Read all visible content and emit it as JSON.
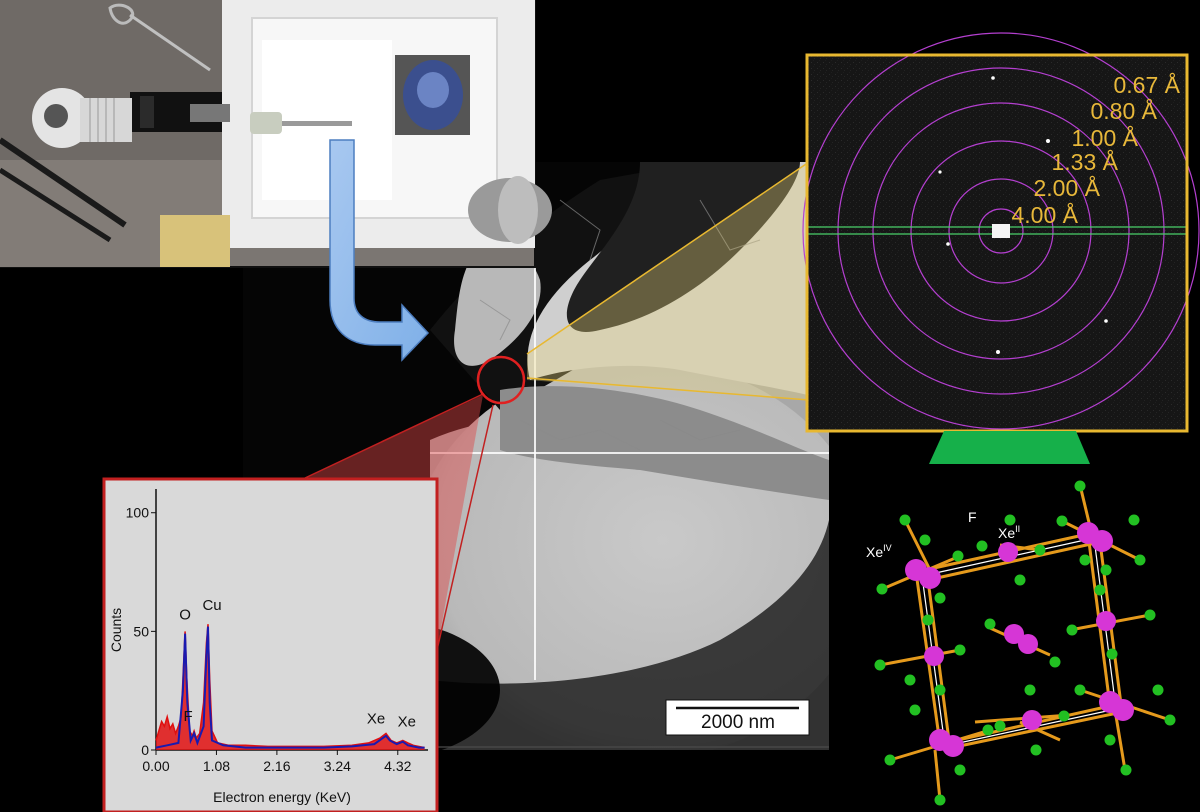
{
  "photo": {
    "description_icon": "cryo-transfer-holder-photo"
  },
  "tem": {
    "scale_bar_label": "2000 nm"
  },
  "diffraction": {
    "ring_labels": [
      "0.67 Å",
      "0.80 Å",
      "1.00 Å",
      "1.33 Å",
      "2.00 Å",
      "4.00 Å"
    ]
  },
  "crystal": {
    "labels": {
      "xe_iv": "Xe",
      "xe_iv_sup": "IV",
      "f": "F",
      "xe_ii": "Xe",
      "xe_ii_sup": "II"
    },
    "colors": {
      "xe": "#d636d6",
      "f": "#22c022",
      "bond": "#e59a1c"
    }
  },
  "chart_data": {
    "type": "line",
    "title": "",
    "xlabel": "Electron energy (KeV)",
    "ylabel": "Counts",
    "x_ticks": [
      "0.00",
      "1.08",
      "2.16",
      "3.24",
      "4.32"
    ],
    "y_ticks": [
      "0",
      "50",
      "100"
    ],
    "xlim": [
      0,
      4.86
    ],
    "ylim": [
      0,
      110
    ],
    "peaks": [
      {
        "label": "O",
        "x": 0.52,
        "y": 50
      },
      {
        "label": "Cu",
        "x": 0.93,
        "y": 53
      },
      {
        "label": "F",
        "x": 0.68,
        "y": 8
      },
      {
        "label": "Xe",
        "x": 4.11,
        "y": 7
      },
      {
        "label": "Xe",
        "x": 4.41,
        "y": 4
      }
    ],
    "series": [
      {
        "color": "#e01010",
        "x": [
          0.0,
          0.05,
          0.1,
          0.15,
          0.2,
          0.25,
          0.3,
          0.35,
          0.4,
          0.45,
          0.5,
          0.52,
          0.55,
          0.6,
          0.65,
          0.68,
          0.72,
          0.78,
          0.85,
          0.9,
          0.93,
          0.96,
          1.0,
          1.1,
          1.3,
          1.6,
          2.0,
          2.5,
          3.0,
          3.5,
          3.8,
          4.0,
          4.11,
          4.2,
          4.3,
          4.41,
          4.5,
          4.6,
          4.8
        ],
        "y": [
          4,
          8,
          12,
          10,
          14,
          9,
          11,
          7,
          10,
          14,
          40,
          50,
          30,
          8,
          6,
          8,
          5,
          7,
          20,
          45,
          53,
          30,
          8,
          3,
          2,
          2,
          1.5,
          1.5,
          1.5,
          2,
          3,
          5,
          7,
          4,
          3,
          4,
          3,
          2,
          1
        ]
      },
      {
        "color": "#1a1ab0",
        "x": [
          0.0,
          0.2,
          0.4,
          0.48,
          0.52,
          0.56,
          0.62,
          0.68,
          0.74,
          0.85,
          0.9,
          0.93,
          0.96,
          1.0,
          1.2,
          1.6,
          2.0,
          2.5,
          3.0,
          3.5,
          3.9,
          4.05,
          4.11,
          4.18,
          4.3,
          4.41,
          4.5,
          4.7,
          4.8
        ],
        "y": [
          1,
          2,
          3,
          25,
          49,
          20,
          4,
          7,
          3,
          10,
          40,
          52,
          20,
          4,
          2,
          1,
          1,
          1,
          1,
          1.5,
          2.5,
          5,
          6,
          4,
          2.5,
          3.5,
          2,
          1,
          1
        ]
      }
    ]
  }
}
